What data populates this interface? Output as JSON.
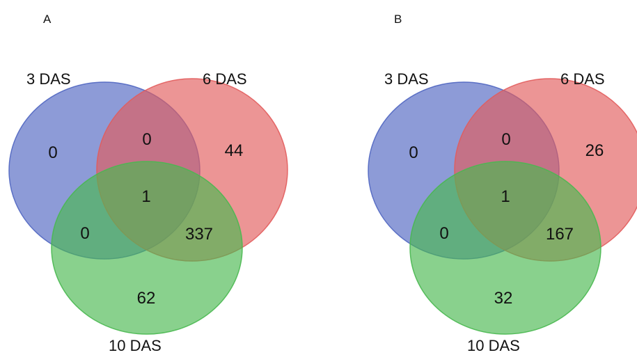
{
  "panels": [
    {
      "letter": "A",
      "sets": {
        "s1": {
          "label": "3 DAS",
          "color": "#5066c1"
        },
        "s2": {
          "label": "6 DAS",
          "color": "#e25c5c"
        },
        "s3": {
          "label": "10 DAS",
          "color": "#49b850"
        }
      },
      "counts": {
        "only_s1": "0",
        "only_s2": "44",
        "only_s3": "62",
        "s1_s2": "0",
        "s1_s3": "0",
        "s2_s3": "337",
        "all": "1"
      }
    },
    {
      "letter": "B",
      "sets": {
        "s1": {
          "label": "3 DAS",
          "color": "#5066c1"
        },
        "s2": {
          "label": "6 DAS",
          "color": "#e25c5c"
        },
        "s3": {
          "label": "10 DAS",
          "color": "#49b850"
        }
      },
      "counts": {
        "only_s1": "0",
        "only_s2": "26",
        "only_s3": "32",
        "s1_s2": "0",
        "s1_s3": "0",
        "s2_s3": "167",
        "all": "1"
      }
    }
  ]
}
